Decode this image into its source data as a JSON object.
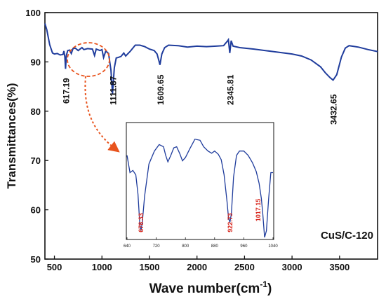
{
  "chart_data": {
    "type": "line",
    "xlabel": "Wave number(cm",
    "xlabel_sup": "-1",
    "xlabel_close": ")",
    "ylabel": "Transmittances(%)",
    "xlim": [
      400,
      3900
    ],
    "ylim": [
      50,
      100
    ],
    "x_ticks": [
      "500",
      "1000",
      "1500",
      "2000",
      "2500",
      "3000",
      "3500"
    ],
    "y_ticks": [
      "50",
      "60",
      "70",
      "80",
      "90",
      "100"
    ],
    "line_color": "#1f3c9c",
    "annotation_color": "#e8541e",
    "sample_label": "CuS/C-120",
    "series": [
      {
        "x": [
          400,
          420,
          450,
          480,
          500,
          530,
          560,
          590,
          600,
          610,
          617,
          625,
          640,
          660,
          678,
          695,
          720,
          750,
          790,
          810,
          850,
          900,
          922,
          940,
          980,
          1000,
          1017,
          1040,
          1070,
          1095,
          1111,
          1130,
          1150,
          1170,
          1200,
          1230,
          1250,
          1300,
          1350,
          1400,
          1450,
          1500,
          1550,
          1580,
          1600,
          1610,
          1630,
          1660,
          1700,
          1800,
          1900,
          2000,
          2100,
          2200,
          2280,
          2320,
          2330,
          2345,
          2360,
          2380,
          2450,
          2600,
          2800,
          3000,
          3100,
          3200,
          3300,
          3350,
          3400,
          3432,
          3470,
          3520,
          3560,
          3600,
          3700,
          3800,
          3900
        ],
        "y": [
          97.8,
          96.5,
          93.5,
          91.8,
          91.6,
          91.7,
          91.4,
          91.5,
          92.2,
          91.0,
          88.6,
          91.3,
          92.3,
          92.4,
          91.7,
          92.7,
          92.8,
          92.3,
          92.9,
          92.5,
          92.7,
          92.6,
          91.3,
          92.6,
          92.3,
          92.5,
          90.9,
          92.2,
          91.7,
          88.3,
          83.6,
          88.8,
          90.8,
          90.9,
          91.1,
          91.8,
          91.2,
          92.2,
          93.4,
          93.4,
          93.1,
          92.6,
          92.3,
          91.6,
          90.2,
          89.4,
          91.6,
          92.9,
          93.4,
          93.3,
          93.0,
          93.2,
          93.1,
          93.2,
          93.3,
          94.2,
          94.5,
          91.8,
          94.3,
          93.2,
          92.9,
          92.6,
          92.1,
          91.6,
          91.2,
          90.4,
          89.0,
          87.8,
          86.8,
          86.3,
          87.4,
          91.0,
          92.8,
          93.3,
          93.0,
          92.5,
          92.1
        ]
      }
    ],
    "peaks": [
      "617.19",
      "1111.87",
      "1609.65",
      "2345.81",
      "3432.65"
    ],
    "inset": {
      "xlim": [
        640,
        1040
      ],
      "x_ticks": [
        "640",
        "720",
        "800",
        "880",
        "960",
        "1040"
      ],
      "x": [
        640,
        648,
        656,
        664,
        670,
        675,
        678,
        682,
        688,
        700,
        715,
        728,
        740,
        746,
        752,
        760,
        768,
        776,
        784,
        792,
        800,
        812,
        826,
        840,
        850,
        862,
        872,
        880,
        890,
        898,
        906,
        914,
        918,
        922,
        926,
        932,
        940,
        948,
        960,
        972,
        984,
        994,
        1002,
        1008,
        1012,
        1017,
        1022,
        1028,
        1034,
        1040
      ],
      "y": [
        78,
        62,
        64,
        60,
        42,
        14,
        8,
        16,
        40,
        70,
        82,
        88,
        86,
        78,
        72,
        78,
        85,
        86,
        80,
        73,
        76,
        84,
        93,
        92,
        86,
        82,
        80,
        82,
        79,
        74,
        60,
        35,
        20,
        16,
        24,
        58,
        78,
        82,
        82,
        78,
        71,
        63,
        52,
        38,
        24,
        2,
        8,
        38,
        62,
        62
      ],
      "peaks": [
        "678.33",
        "922.73",
        "1017.15"
      ]
    }
  }
}
